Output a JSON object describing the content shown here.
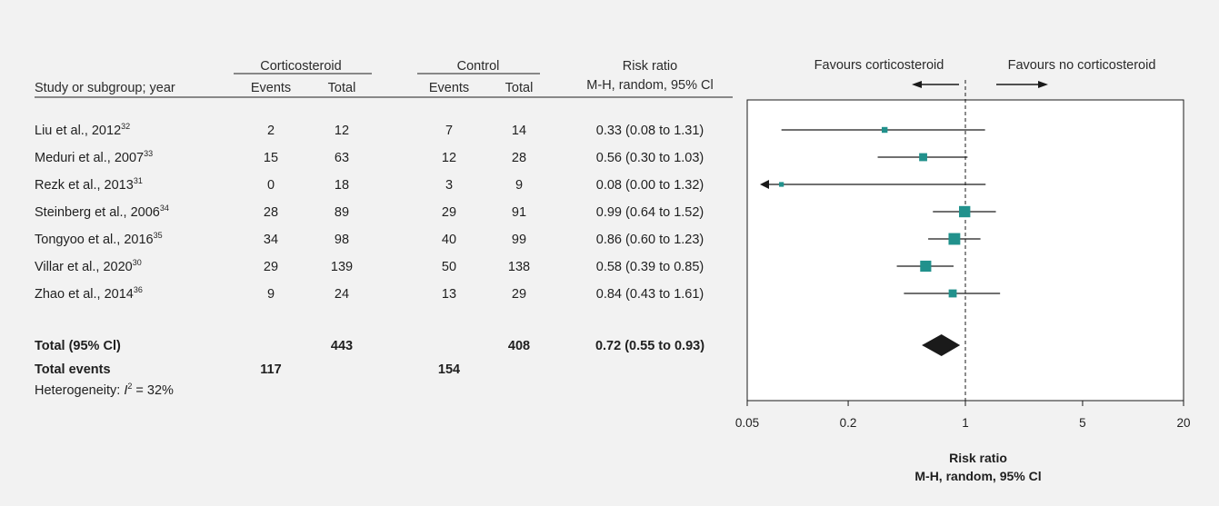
{
  "headers": {
    "study": "Study or subgroup; year",
    "group1": "Corticosteroid",
    "group2": "Control",
    "events": "Events",
    "total": "Total",
    "rr_title": "Risk ratio",
    "rr_method": "M-H, random, 95% Cl",
    "favours_left": "Favours corticosteroid",
    "favours_right": "Favours no corticosteroid"
  },
  "studies": [
    {
      "name": "Liu et al., 2012",
      "ref": "32",
      "e1": "2",
      "t1": "12",
      "e2": "7",
      "t2": "14",
      "ci_text": "0.33 (0.08 to 1.31)",
      "rr": 0.33,
      "lo": 0.08,
      "hi": 1.31,
      "weight": 1
    },
    {
      "name": "Meduri et al., 2007",
      "ref": "33",
      "e1": "15",
      "t1": "63",
      "e2": "12",
      "t2": "28",
      "ci_text": "0.56 (0.30 to 1.03)",
      "rr": 0.56,
      "lo": 0.3,
      "hi": 1.03,
      "weight": 2
    },
    {
      "name": "Rezk et al., 2013",
      "ref": "31",
      "e1": "0",
      "t1": "18",
      "e2": "3",
      "t2": "9",
      "ci_text": "0.08 (0.00 to 1.32)",
      "rr": 0.08,
      "lo": 0.0,
      "hi": 1.32,
      "weight": 0.5
    },
    {
      "name": "Steinberg et al., 2006",
      "ref": "34",
      "e1": "28",
      "t1": "89",
      "e2": "29",
      "t2": "91",
      "ci_text": "0.99 (0.64 to 1.52)",
      "rr": 0.99,
      "lo": 0.64,
      "hi": 1.52,
      "weight": 3.5
    },
    {
      "name": "Tongyoo et al., 2016",
      "ref": "35",
      "e1": "34",
      "t1": "98",
      "e2": "40",
      "t2": "99",
      "ci_text": "0.86 (0.60 to 1.23)",
      "rr": 0.86,
      "lo": 0.6,
      "hi": 1.23,
      "weight": 3.7
    },
    {
      "name": "Villar et al., 2020",
      "ref": "30",
      "e1": "29",
      "t1": "139",
      "e2": "50",
      "t2": "138",
      "ci_text": "0.58 (0.39 to 0.85)",
      "rr": 0.58,
      "lo": 0.39,
      "hi": 0.85,
      "weight": 3.4
    },
    {
      "name": "Zhao et al., 2014",
      "ref": "36",
      "e1": "9",
      "t1": "24",
      "e2": "13",
      "t2": "29",
      "ci_text": "0.84 (0.43 to 1.61)",
      "rr": 0.84,
      "lo": 0.43,
      "hi": 1.61,
      "weight": 2
    }
  ],
  "total": {
    "label": "Total (95% Cl)",
    "t1": "443",
    "t2": "408",
    "ci_text": "0.72 (0.55 to 0.93)",
    "rr": 0.72,
    "lo": 0.55,
    "hi": 0.93
  },
  "total_events": {
    "label": "Total events",
    "e1": "117",
    "e2": "154"
  },
  "heterogeneity": {
    "prefix": "Heterogeneity: ",
    "symbol": "I",
    "sup": "2",
    "value": " = 32%"
  },
  "chart_data": {
    "type": "forest",
    "scale": "log",
    "xlim": [
      0.05,
      20
    ],
    "reference_line": 1,
    "ticks": [
      0.05,
      0.2,
      1,
      5,
      20
    ],
    "tick_labels": [
      "0.05",
      "0.2",
      "1",
      "5",
      "20"
    ],
    "xlabel": "Risk ratio",
    "xlabel2": "M-H, random, 95% Cl",
    "marker_color": "#21918c",
    "diamond_color": "#1a1a1a"
  }
}
